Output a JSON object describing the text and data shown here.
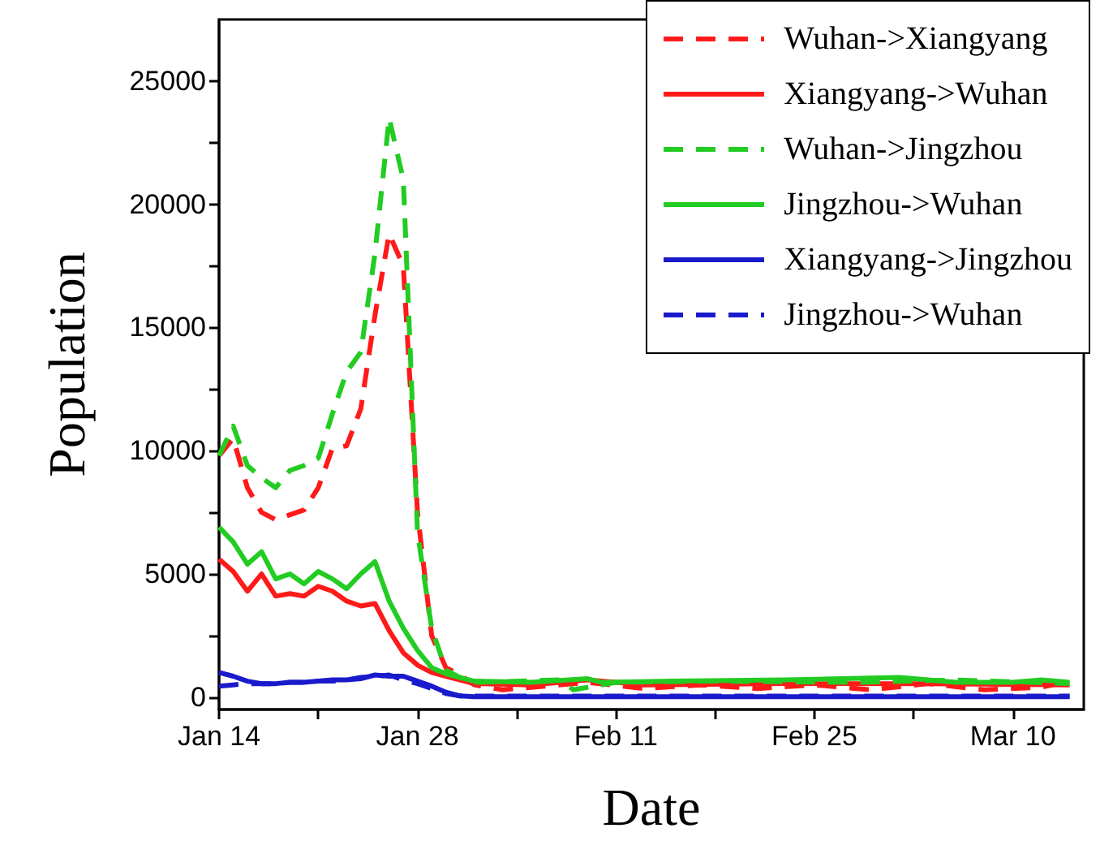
{
  "chart_data": {
    "type": "line",
    "xlabel": "Date",
    "ylabel": "Population",
    "xlim": [
      "--01-14",
      "--03-15"
    ],
    "xticks": [
      {
        "value": "--01-14",
        "label": "Jan 14"
      },
      {
        "value": "--01-21",
        "label": null
      },
      {
        "value": "--01-28",
        "label": "Jan 28"
      },
      {
        "value": "--02-04",
        "label": null
      },
      {
        "value": "--02-11",
        "label": "Feb 11"
      },
      {
        "value": "--02-18",
        "label": null
      },
      {
        "value": "--02-25",
        "label": "Feb 25"
      },
      {
        "value": "--03-03",
        "label": null
      },
      {
        "value": "--03-10",
        "label": "Mar 10"
      }
    ],
    "ylim": [
      -500,
      27500
    ],
    "yticks": [
      0,
      {
        "value": 2500,
        "label": null
      },
      5000,
      {
        "value": 7500,
        "label": null
      },
      10000,
      {
        "value": 12500,
        "label": null
      },
      15000,
      {
        "value": 17500,
        "label": null
      },
      20000,
      {
        "value": 22500,
        "label": null
      },
      25000
    ],
    "grid": false,
    "legend": "top right",
    "marker": "none",
    "series": [
      {
        "name": "Wuhan->Xiangyang",
        "color": "#ff1a1a",
        "line_style": "dashed",
        "x": [
          "--01-14",
          "--01-15",
          "--01-16",
          "--01-17",
          "--01-18",
          "--01-19",
          "--01-20",
          "--01-21",
          "--01-22",
          "--01-23",
          "--01-24",
          "--01-25",
          "--01-26",
          "--01-27",
          "--01-28",
          "--01-29",
          "--01-30",
          "--01-31",
          "--02-01",
          "--02-03",
          "--02-06",
          "--02-09",
          "--02-13",
          "--02-17",
          "--02-21",
          "--02-25",
          "--02-29",
          "--03-04",
          "--03-08",
          "--03-12",
          "--03-14"
        ],
        "values": [
          9800,
          10500,
          8500,
          7500,
          7200,
          7400,
          7600,
          8500,
          10100,
          10200,
          11700,
          15500,
          18800,
          17500,
          7500,
          2500,
          1200,
          900,
          500,
          300,
          450,
          600,
          350,
          500,
          350,
          500,
          300,
          550,
          300,
          400,
          650
        ]
      },
      {
        "name": "Xiangyang->Wuhan",
        "color": "#ff1a1a",
        "line_style": "solid",
        "x": [
          "--01-14",
          "--01-15",
          "--01-16",
          "--01-17",
          "--01-18",
          "--01-19",
          "--01-20",
          "--01-21",
          "--01-22",
          "--01-23",
          "--01-24",
          "--01-25",
          "--01-26",
          "--01-27",
          "--01-28",
          "--01-29",
          "--01-30",
          "--01-31",
          "--02-01",
          "--02-05",
          "--02-09",
          "--02-13",
          "--02-23",
          "--03-04",
          "--03-14"
        ],
        "values": [
          5600,
          5100,
          4300,
          5000,
          4100,
          4200,
          4100,
          4500,
          4300,
          3900,
          3700,
          3800,
          2700,
          1800,
          1300,
          1000,
          850,
          700,
          550,
          500,
          700,
          500,
          550,
          550,
          500
        ]
      },
      {
        "name": "Wuhan->Jingzhou",
        "color": "#22cc22",
        "line_style": "dashed",
        "x": [
          "--01-14",
          "--01-15",
          "--01-16",
          "--01-17",
          "--01-18",
          "--01-19",
          "--01-20",
          "--01-21",
          "--01-22",
          "--01-23",
          "--01-24",
          "--01-25",
          "--01-26",
          "--01-27",
          "--01-28",
          "--01-29",
          "--01-30",
          "--01-31",
          "--02-01",
          "--02-07",
          "--02-08",
          "--02-11",
          "--02-18",
          "--02-28",
          "--03-06",
          "--03-14"
        ],
        "values": [
          9800,
          11000,
          9400,
          8900,
          8500,
          9200,
          9400,
          9700,
          11500,
          13200,
          14000,
          18000,
          23500,
          21000,
          6700,
          2800,
          1100,
          800,
          600,
          700,
          300,
          600,
          650,
          600,
          700,
          550
        ]
      },
      {
        "name": "Jingzhou->Wuhan",
        "color": "#22cc22",
        "line_style": "solid",
        "x": [
          "--01-14",
          "--01-15",
          "--01-16",
          "--01-17",
          "--01-18",
          "--01-19",
          "--01-20",
          "--01-21",
          "--01-22",
          "--01-23",
          "--01-24",
          "--01-25",
          "--01-26",
          "--01-27",
          "--01-28",
          "--01-29",
          "--01-30",
          "--01-31",
          "--02-01",
          "--02-05",
          "--02-09",
          "--02-10",
          "--02-15",
          "--02-23",
          "--03-02",
          "--03-06",
          "--03-10",
          "--03-12",
          "--03-14"
        ],
        "values": [
          6900,
          6300,
          5400,
          5900,
          4800,
          5000,
          4600,
          5100,
          4800,
          4400,
          5000,
          5500,
          3900,
          2800,
          1900,
          1200,
          950,
          800,
          650,
          600,
          750,
          600,
          650,
          700,
          800,
          600,
          600,
          700,
          600
        ]
      },
      {
        "name": "Xiangyang->Jingzhou",
        "color": "#1a1acc",
        "line_style": "solid",
        "x": [
          "--01-14",
          "--01-15",
          "--01-16",
          "--01-17",
          "--01-18",
          "--01-19",
          "--01-20",
          "--01-21",
          "--01-22",
          "--01-23",
          "--01-24",
          "--01-25",
          "--01-26",
          "--01-27",
          "--01-28",
          "--01-29",
          "--01-30",
          "--01-31",
          "--02-01",
          "--02-13",
          "--02-28",
          "--03-14"
        ],
        "values": [
          1000,
          850,
          650,
          550,
          550,
          600,
          600,
          650,
          700,
          700,
          750,
          900,
          850,
          850,
          650,
          450,
          200,
          50,
          20,
          20,
          20,
          20
        ]
      },
      {
        "name": "Jingzhou->Wuhan",
        "color": "#1a1acc",
        "line_style": "dashed",
        "x": [
          "--01-14",
          "--01-15",
          "--01-16",
          "--01-17",
          "--01-18",
          "--01-19",
          "--01-20",
          "--01-21",
          "--01-22",
          "--01-23",
          "--01-24",
          "--01-25",
          "--01-26",
          "--01-27",
          "--01-28",
          "--01-29",
          "--01-30",
          "--01-31",
          "--02-01",
          "--02-13",
          "--02-28",
          "--03-14"
        ],
        "values": [
          450,
          500,
          550,
          550,
          550,
          600,
          600,
          650,
          650,
          700,
          800,
          850,
          900,
          700,
          550,
          350,
          150,
          50,
          40,
          40,
          40,
          40
        ]
      }
    ]
  }
}
